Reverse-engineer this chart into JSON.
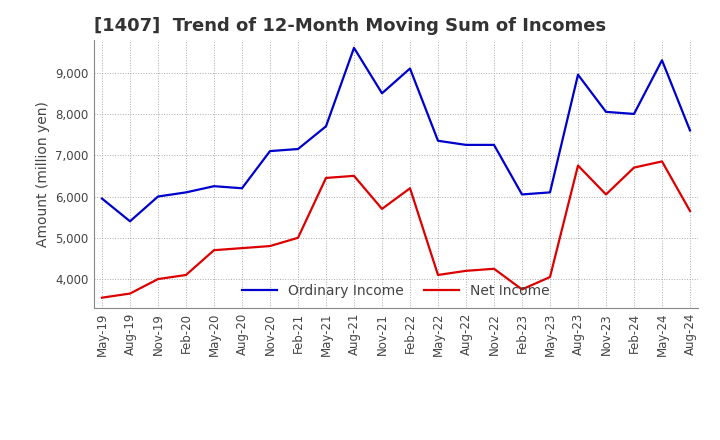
{
  "title": "[1407]  Trend of 12-Month Moving Sum of Incomes",
  "ylabel": "Amount (million yen)",
  "ylim": [
    3300,
    9800
  ],
  "yticks": [
    4000,
    5000,
    6000,
    7000,
    8000,
    9000
  ],
  "legend_labels": [
    "Ordinary Income",
    "Net Income"
  ],
  "line_colors": [
    "#0000cc",
    "#dd0000"
  ],
  "dates": [
    "May-19",
    "Aug-19",
    "Nov-19",
    "Feb-20",
    "May-20",
    "Aug-20",
    "Nov-20",
    "Feb-21",
    "May-21",
    "Aug-21",
    "Nov-21",
    "Feb-22",
    "May-22",
    "Aug-22",
    "Nov-22",
    "Feb-23",
    "May-23",
    "Aug-23",
    "Nov-23",
    "Feb-24",
    "May-24",
    "Aug-24"
  ],
  "ordinary_income": [
    5950,
    5400,
    6000,
    6100,
    6250,
    6200,
    7100,
    7150,
    7700,
    9600,
    8500,
    9100,
    7350,
    7250,
    7250,
    6050,
    6100,
    8950,
    8050,
    8000,
    9300,
    7600
  ],
  "net_income": [
    3550,
    3650,
    4000,
    4100,
    4700,
    4750,
    4800,
    5000,
    6450,
    6500,
    5700,
    6200,
    4100,
    4200,
    4250,
    3750,
    4050,
    6750,
    6050,
    6700,
    6850,
    5650
  ],
  "background_color": "#ffffff",
  "grid_color": "#aaaaaa",
  "title_color": "#333333",
  "title_fontsize": 13,
  "axis_label_fontsize": 10,
  "tick_fontsize": 8.5,
  "legend_fontsize": 10,
  "linewidth": 1.6
}
